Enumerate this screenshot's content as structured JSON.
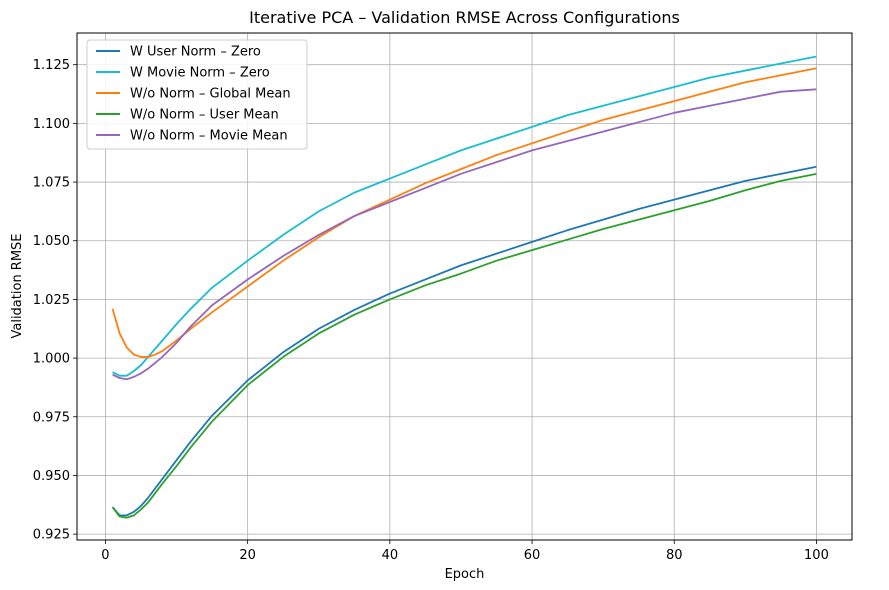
{
  "chart_data": {
    "type": "line",
    "title": "Iterative PCA – Validation RMSE Across Configurations",
    "xlabel": "Epoch",
    "ylabel": "Validation RMSE",
    "xlim": [
      -4,
      105
    ],
    "ylim": [
      0.9225,
      1.1385
    ],
    "x_ticks": [
      0,
      20,
      40,
      60,
      80,
      100
    ],
    "y_ticks": [
      0.925,
      0.95,
      0.975,
      1.0,
      1.025,
      1.05,
      1.075,
      1.1,
      1.125
    ],
    "x_tick_labels": [
      "0",
      "20",
      "40",
      "60",
      "80",
      "100"
    ],
    "y_tick_labels": [
      "0.925",
      "0.950",
      "0.975",
      "1.000",
      "1.025",
      "1.050",
      "1.075",
      "1.100",
      "1.125"
    ],
    "grid": true,
    "legend_position": "upper-left",
    "series": [
      {
        "name": "W User Norm – Zero",
        "color": "#1f77b4",
        "x": [
          1,
          2,
          3,
          4,
          5,
          6,
          8,
          10,
          12,
          15,
          20,
          25,
          30,
          35,
          40,
          45,
          50,
          55,
          60,
          65,
          70,
          75,
          80,
          85,
          90,
          95,
          100
        ],
        "y": [
          0.9365,
          0.933,
          0.933,
          0.9345,
          0.937,
          0.9405,
          0.9485,
          0.9565,
          0.9645,
          0.9755,
          0.9905,
          1.0025,
          1.0125,
          1.0205,
          1.0275,
          1.0335,
          1.0395,
          1.0445,
          1.0495,
          1.0545,
          1.059,
          1.0635,
          1.0675,
          1.0715,
          1.0755,
          1.0785,
          1.0815
        ]
      },
      {
        "name": "W Movie Norm – Zero",
        "color": "#17becf",
        "x": [
          1,
          2,
          3,
          4,
          5,
          6,
          8,
          10,
          12,
          15,
          20,
          25,
          30,
          35,
          40,
          45,
          50,
          55,
          60,
          65,
          70,
          75,
          80,
          85,
          90,
          95,
          100
        ],
        "y": [
          0.994,
          0.9925,
          0.9925,
          0.9945,
          0.997,
          1.0005,
          1.0075,
          1.0145,
          1.021,
          1.03,
          1.0415,
          1.0525,
          1.0625,
          1.0705,
          1.0765,
          1.0825,
          1.0885,
          1.0935,
          1.0985,
          1.1035,
          1.1075,
          1.1115,
          1.1155,
          1.1195,
          1.1225,
          1.1255,
          1.1285
        ]
      },
      {
        "name": "W/o Norm – Global Mean",
        "color": "#ff7f0e",
        "x": [
          1,
          2,
          3,
          4,
          5,
          6,
          7,
          8,
          10,
          12,
          15,
          20,
          25,
          30,
          35,
          40,
          45,
          50,
          55,
          60,
          65,
          70,
          75,
          80,
          85,
          90,
          95,
          100
        ],
        "y": [
          1.021,
          1.0105,
          1.0045,
          1.0015,
          1.0005,
          1.0005,
          1.0015,
          1.003,
          1.0075,
          1.0125,
          1.0195,
          1.0305,
          1.0415,
          1.0515,
          1.0605,
          1.0675,
          1.0745,
          1.0805,
          1.0865,
          1.0915,
          1.0965,
          1.1015,
          1.1055,
          1.1095,
          1.1135,
          1.1175,
          1.1205,
          1.1235
        ]
      },
      {
        "name": "W/o Norm – User Mean",
        "color": "#2ca02c",
        "x": [
          1,
          2,
          3,
          4,
          5,
          6,
          8,
          10,
          12,
          15,
          20,
          25,
          30,
          35,
          40,
          45,
          50,
          55,
          60,
          65,
          70,
          75,
          80,
          85,
          90,
          95,
          100
        ],
        "y": [
          0.9365,
          0.9325,
          0.932,
          0.933,
          0.9355,
          0.9385,
          0.9465,
          0.954,
          0.962,
          0.973,
          0.9885,
          1.0005,
          1.0105,
          1.0185,
          1.025,
          1.031,
          1.036,
          1.0415,
          1.046,
          1.0505,
          1.055,
          1.059,
          1.063,
          1.067,
          1.0715,
          1.0755,
          1.0785
        ]
      },
      {
        "name": "W/o Norm – Movie Mean",
        "color": "#9467bd",
        "x": [
          1,
          2,
          3,
          4,
          5,
          6,
          8,
          10,
          12,
          15,
          20,
          25,
          30,
          35,
          40,
          45,
          50,
          55,
          60,
          65,
          70,
          75,
          80,
          85,
          90,
          95,
          100
        ],
        "y": [
          0.993,
          0.9915,
          0.991,
          0.992,
          0.9935,
          0.9955,
          1.0005,
          1.0065,
          1.0135,
          1.0225,
          1.0335,
          1.0435,
          1.0525,
          1.0605,
          1.0665,
          1.0725,
          1.0785,
          1.0835,
          1.0885,
          1.0925,
          1.0965,
          1.1005,
          1.1045,
          1.1075,
          1.1105,
          1.1135,
          1.1145
        ]
      }
    ]
  }
}
